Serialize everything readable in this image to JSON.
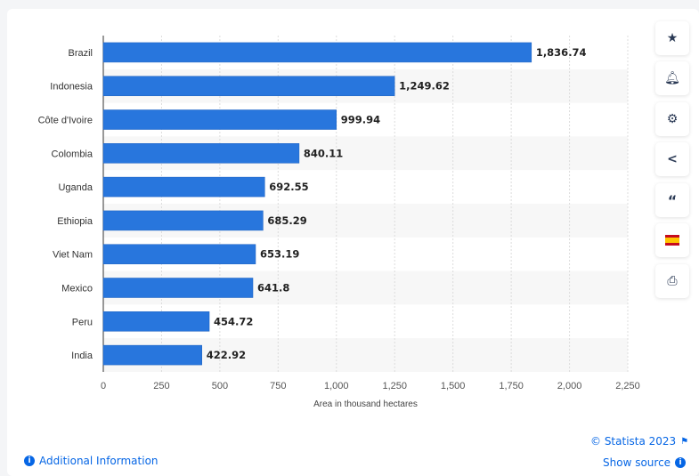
{
  "chart_data": {
    "type": "bar",
    "orientation": "horizontal",
    "categories": [
      "Brazil",
      "Indonesia",
      "Côte d'Ivoire",
      "Colombia",
      "Uganda",
      "Ethiopia",
      "Viet Nam",
      "Mexico",
      "Peru",
      "India"
    ],
    "values": [
      1836.74,
      1249.62,
      999.94,
      840.11,
      692.55,
      685.29,
      653.19,
      641.8,
      454.72,
      422.92
    ],
    "data_labels": [
      "1,836.74",
      "1,249.62",
      "999.94",
      "840.11",
      "692.55",
      "685.29",
      "653.19",
      "641.8",
      "454.72",
      "422.92"
    ],
    "xlabel": "Area in thousand hectares",
    "xlim": [
      0,
      2250
    ],
    "xticks": [
      0,
      250,
      500,
      750,
      1000,
      1250,
      1500,
      1750,
      2000,
      2250
    ],
    "xtick_labels": [
      "0",
      "250",
      "500",
      "750",
      "1,000",
      "1,250",
      "1,500",
      "1,750",
      "2,000",
      "2,250"
    ],
    "grid": true,
    "bar_color": "#2876dd"
  },
  "sidebar": {
    "buttons": [
      {
        "icon": "star-icon"
      },
      {
        "icon": "bell-icon"
      },
      {
        "icon": "gear-icon"
      },
      {
        "icon": "share-icon"
      },
      {
        "icon": "quote-icon"
      },
      {
        "icon": "spain-flag-icon"
      },
      {
        "icon": "print-icon"
      }
    ]
  },
  "footer": {
    "copyright": "© Statista 2023",
    "additional_info": "Additional Information",
    "show_source": "Show source"
  }
}
